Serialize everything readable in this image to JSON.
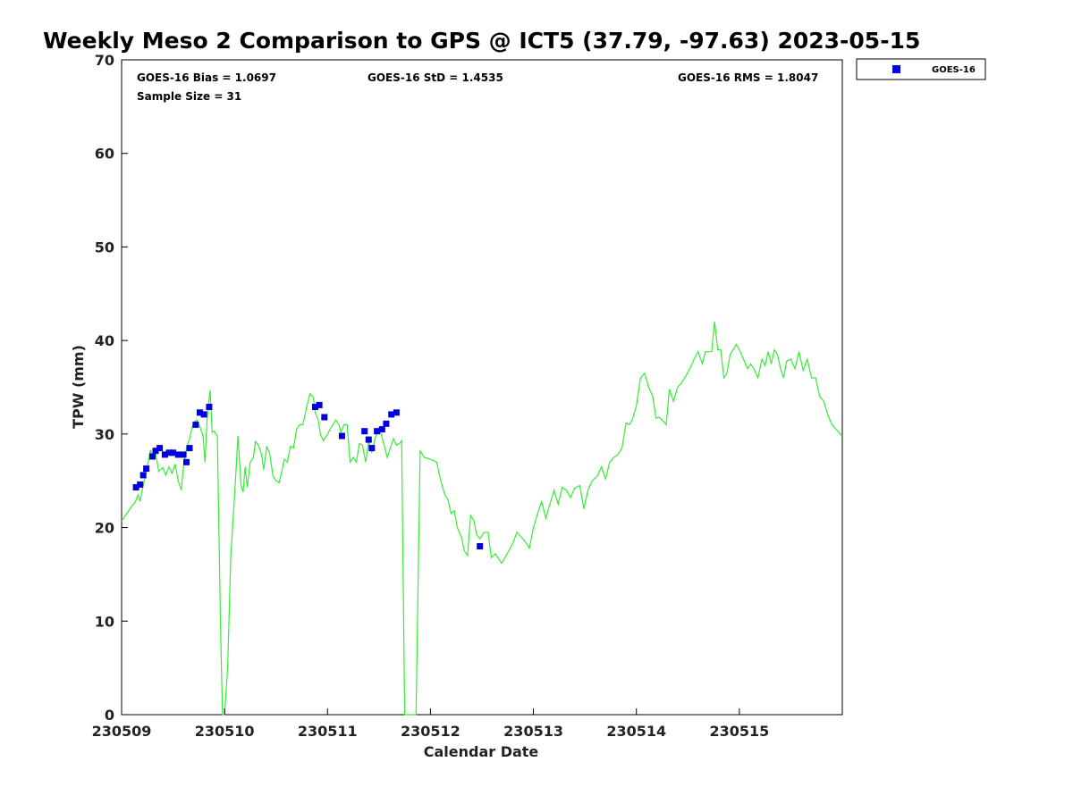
{
  "chart_data": {
    "type": "line",
    "title": "Weekly Meso 2 Comparison to GPS @ ICT5 (37.79, -97.63) 2023-05-15",
    "xlabel": "Calendar Date",
    "ylabel": "TPW (mm)",
    "xlim": [
      0,
      7
    ],
    "ylim": [
      0,
      70
    ],
    "x_ticks": [
      {
        "value": 0,
        "label": "230509"
      },
      {
        "value": 1,
        "label": "230510"
      },
      {
        "value": 2,
        "label": "230511"
      },
      {
        "value": 3,
        "label": "230512"
      },
      {
        "value": 4,
        "label": "230513"
      },
      {
        "value": 5,
        "label": "230514"
      },
      {
        "value": 6,
        "label": "230515"
      }
    ],
    "y_ticks": [
      0,
      10,
      20,
      30,
      40,
      50,
      60,
      70
    ],
    "stats": {
      "bias": "GOES-16 Bias = 1.0697",
      "std": "GOES-16 StD = 1.4535",
      "rms": "GOES-16 RMS = 1.8047",
      "sample": "Sample Size = 31"
    },
    "legend": {
      "position": "top-right",
      "entries": [
        {
          "name": "GOES-16",
          "color": "#0000dd",
          "marker": "square"
        }
      ]
    },
    "series": [
      {
        "color": "#33ee33",
        "kind": "line",
        "points": [
          [
            0.0,
            20.7
          ],
          [
            0.05,
            21.5
          ],
          [
            0.1,
            22.3
          ],
          [
            0.13,
            22.7
          ],
          [
            0.16,
            23.5
          ],
          [
            0.18,
            22.8
          ],
          [
            0.2,
            24.0
          ],
          [
            0.22,
            25.0
          ],
          [
            0.25,
            26.5
          ],
          [
            0.28,
            28.3
          ],
          [
            0.3,
            27.6
          ],
          [
            0.33,
            28.0
          ],
          [
            0.36,
            26.0
          ],
          [
            0.4,
            26.4
          ],
          [
            0.43,
            25.6
          ],
          [
            0.46,
            26.5
          ],
          [
            0.49,
            25.8
          ],
          [
            0.52,
            26.8
          ],
          [
            0.55,
            25.0
          ],
          [
            0.58,
            24.0
          ],
          [
            0.6,
            26.5
          ],
          [
            0.63,
            28.5
          ],
          [
            0.66,
            29.5
          ],
          [
            0.68,
            30.5
          ],
          [
            0.7,
            31.2
          ],
          [
            0.73,
            31.5
          ],
          [
            0.76,
            30.8
          ],
          [
            0.79,
            29.8
          ],
          [
            0.81,
            27.0
          ],
          [
            0.83,
            31.5
          ],
          [
            0.86,
            34.7
          ],
          [
            0.88,
            30.2
          ],
          [
            0.9,
            30.3
          ],
          [
            0.93,
            29.8
          ],
          [
            0.96,
            10.0
          ],
          [
            0.98,
            0.0
          ],
          [
            1.0,
            0.0
          ],
          [
            1.03,
            5.0
          ],
          [
            1.06,
            17.0
          ],
          [
            1.1,
            24.0
          ],
          [
            1.13,
            29.8
          ],
          [
            1.16,
            24.5
          ],
          [
            1.18,
            23.8
          ],
          [
            1.2,
            26.5
          ],
          [
            1.22,
            24.3
          ],
          [
            1.25,
            27.0
          ],
          [
            1.28,
            27.5
          ],
          [
            1.3,
            29.2
          ],
          [
            1.33,
            28.8
          ],
          [
            1.36,
            27.8
          ],
          [
            1.38,
            26.2
          ],
          [
            1.41,
            28.7
          ],
          [
            1.44,
            27.8
          ],
          [
            1.47,
            25.5
          ],
          [
            1.5,
            25.0
          ],
          [
            1.53,
            24.8
          ],
          [
            1.56,
            26.2
          ],
          [
            1.58,
            27.3
          ],
          [
            1.61,
            27.0
          ],
          [
            1.64,
            28.7
          ],
          [
            1.67,
            28.5
          ],
          [
            1.7,
            30.5
          ],
          [
            1.73,
            31.0
          ],
          [
            1.76,
            31.0
          ],
          [
            1.8,
            33.0
          ],
          [
            1.83,
            34.3
          ],
          [
            1.86,
            34.0
          ],
          [
            1.88,
            32.3
          ],
          [
            1.91,
            31.5
          ],
          [
            1.93,
            30.0
          ],
          [
            1.96,
            29.3
          ],
          [
            2.0,
            30.0
          ],
          [
            2.04,
            30.8
          ],
          [
            2.08,
            31.5
          ],
          [
            2.11,
            31.0
          ],
          [
            2.13,
            30.2
          ],
          [
            2.16,
            31.0
          ],
          [
            2.19,
            31.0
          ],
          [
            2.22,
            27.0
          ],
          [
            2.25,
            27.5
          ],
          [
            2.28,
            27.0
          ],
          [
            2.31,
            29.0
          ],
          [
            2.34,
            28.8
          ],
          [
            2.37,
            27.0
          ],
          [
            2.4,
            29.2
          ],
          [
            2.43,
            28.0
          ],
          [
            2.46,
            29.5
          ],
          [
            2.49,
            30.3
          ],
          [
            2.52,
            30.0
          ],
          [
            2.55,
            28.8
          ],
          [
            2.58,
            27.5
          ],
          [
            2.61,
            28.5
          ],
          [
            2.64,
            29.5
          ],
          [
            2.67,
            28.8
          ],
          [
            2.7,
            29.0
          ],
          [
            2.72,
            29.3
          ],
          [
            2.75,
            0.0
          ],
          [
            2.86,
            0.0
          ],
          [
            2.9,
            28.2
          ],
          [
            2.94,
            27.5
          ],
          [
            3.0,
            27.3
          ],
          [
            3.06,
            27.0
          ],
          [
            3.1,
            25.0
          ],
          [
            3.14,
            23.5
          ],
          [
            3.17,
            23.0
          ],
          [
            3.2,
            21.5
          ],
          [
            3.23,
            21.8
          ],
          [
            3.26,
            20.0
          ],
          [
            3.3,
            19.0
          ],
          [
            3.33,
            17.5
          ],
          [
            3.36,
            17.0
          ],
          [
            3.39,
            21.3
          ],
          [
            3.42,
            20.8
          ],
          [
            3.45,
            19.2
          ],
          [
            3.48,
            18.8
          ],
          [
            3.52,
            19.5
          ],
          [
            3.56,
            19.5
          ],
          [
            3.59,
            16.8
          ],
          [
            3.63,
            17.2
          ],
          [
            3.66,
            16.7
          ],
          [
            3.69,
            16.2
          ],
          [
            3.72,
            16.7
          ],
          [
            3.76,
            17.5
          ],
          [
            3.8,
            18.3
          ],
          [
            3.84,
            19.5
          ],
          [
            3.88,
            19.0
          ],
          [
            3.92,
            18.5
          ],
          [
            3.96,
            17.8
          ],
          [
            4.0,
            20.0
          ],
          [
            4.04,
            21.5
          ],
          [
            4.08,
            22.8
          ],
          [
            4.12,
            21.0
          ],
          [
            4.16,
            22.5
          ],
          [
            4.2,
            24.0
          ],
          [
            4.24,
            22.5
          ],
          [
            4.28,
            24.3
          ],
          [
            4.32,
            24.0
          ],
          [
            4.36,
            23.2
          ],
          [
            4.4,
            24.2
          ],
          [
            4.45,
            24.5
          ],
          [
            4.49,
            22.0
          ],
          [
            4.53,
            24.0
          ],
          [
            4.57,
            25.0
          ],
          [
            4.62,
            25.5
          ],
          [
            4.66,
            26.5
          ],
          [
            4.7,
            25.2
          ],
          [
            4.74,
            27.0
          ],
          [
            4.78,
            27.5
          ],
          [
            4.82,
            27.8
          ],
          [
            4.86,
            28.5
          ],
          [
            4.9,
            31.2
          ],
          [
            4.93,
            31.0
          ],
          [
            4.96,
            31.5
          ],
          [
            5.0,
            33.0
          ],
          [
            5.04,
            36.0
          ],
          [
            5.08,
            36.5
          ],
          [
            5.12,
            35.0
          ],
          [
            5.16,
            34.0
          ],
          [
            5.19,
            31.7
          ],
          [
            5.22,
            31.8
          ],
          [
            5.25,
            31.5
          ],
          [
            5.29,
            31.0
          ],
          [
            5.32,
            34.8
          ],
          [
            5.36,
            33.5
          ],
          [
            5.4,
            35.0
          ],
          [
            5.44,
            35.5
          ],
          [
            5.48,
            36.2
          ],
          [
            5.52,
            37.0
          ],
          [
            5.56,
            38.0
          ],
          [
            5.6,
            38.8
          ],
          [
            5.64,
            37.5
          ],
          [
            5.67,
            38.8
          ],
          [
            5.7,
            38.8
          ],
          [
            5.73,
            38.8
          ],
          [
            5.76,
            42.0
          ],
          [
            5.79,
            39.0
          ],
          [
            5.82,
            39.0
          ],
          [
            5.85,
            36.0
          ],
          [
            5.88,
            36.5
          ],
          [
            5.91,
            38.5
          ],
          [
            5.94,
            39.0
          ],
          [
            5.97,
            39.6
          ],
          [
            6.0,
            39.0
          ],
          [
            6.04,
            38.0
          ],
          [
            6.08,
            37.0
          ],
          [
            6.11,
            37.5
          ],
          [
            6.14,
            37.0
          ],
          [
            6.18,
            36.0
          ],
          [
            6.22,
            38.0
          ],
          [
            6.25,
            37.3
          ],
          [
            6.28,
            38.8
          ],
          [
            6.31,
            37.5
          ],
          [
            6.34,
            39.0
          ],
          [
            6.37,
            38.5
          ],
          [
            6.4,
            37.0
          ],
          [
            6.43,
            36.0
          ],
          [
            6.46,
            37.8
          ],
          [
            6.5,
            38.0
          ],
          [
            6.54,
            37.0
          ],
          [
            6.58,
            38.8
          ],
          [
            6.62,
            36.8
          ],
          [
            6.66,
            38.0
          ],
          [
            6.7,
            36.0
          ],
          [
            6.74,
            36.0
          ],
          [
            6.78,
            34.0
          ],
          [
            6.82,
            33.5
          ],
          [
            6.86,
            32.0
          ],
          [
            6.9,
            31.0
          ],
          [
            6.94,
            30.5
          ],
          [
            6.98,
            30.0
          ],
          [
            7.0,
            29.8
          ]
        ]
      },
      {
        "name": "GOES-16",
        "color": "#0000dd",
        "kind": "scatter",
        "points": [
          [
            0.14,
            24.3
          ],
          [
            0.18,
            24.6
          ],
          [
            0.21,
            25.6
          ],
          [
            0.24,
            26.3
          ],
          [
            0.3,
            27.6
          ],
          [
            0.33,
            28.2
          ],
          [
            0.37,
            28.5
          ],
          [
            0.42,
            27.8
          ],
          [
            0.46,
            28.0
          ],
          [
            0.5,
            28.0
          ],
          [
            0.55,
            27.8
          ],
          [
            0.6,
            27.8
          ],
          [
            0.63,
            27.0
          ],
          [
            0.66,
            28.5
          ],
          [
            0.72,
            31.0
          ],
          [
            0.76,
            32.3
          ],
          [
            0.8,
            32.1
          ],
          [
            0.85,
            32.9
          ],
          [
            1.88,
            32.9
          ],
          [
            1.92,
            33.1
          ],
          [
            1.97,
            31.8
          ],
          [
            2.14,
            29.8
          ],
          [
            2.36,
            30.3
          ],
          [
            2.4,
            29.4
          ],
          [
            2.43,
            28.5
          ],
          [
            2.48,
            30.3
          ],
          [
            2.53,
            30.5
          ],
          [
            2.57,
            31.1
          ],
          [
            2.62,
            32.1
          ],
          [
            2.67,
            32.3
          ],
          [
            3.48,
            18.0
          ]
        ]
      }
    ]
  }
}
